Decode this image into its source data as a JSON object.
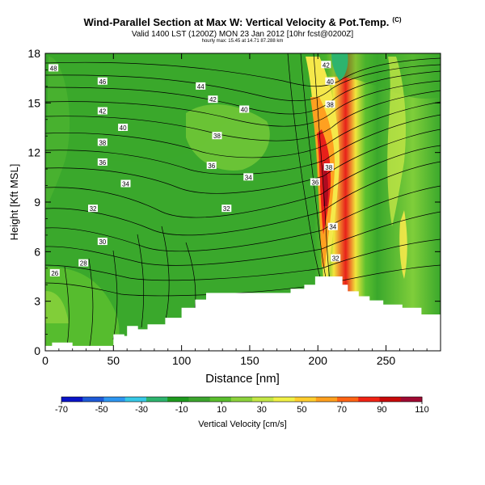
{
  "header": {
    "title": "Wind-Parallel Section at Max W: Vertical Velocity & Pot.Temp.",
    "title_sup": "(C)",
    "subtitle": "Valid 1400 LST (1200Z) MON 23 Jan 2012 [10hr fcst@0200Z]",
    "subtitle2": "hourly max: 15.45 at 14.71 87.288 km"
  },
  "chart_data": {
    "type": "heatmap",
    "xlabel": "Distance [nm]",
    "ylabel": "Height [Kft MSL]",
    "xlim": [
      0,
      290
    ],
    "ylim": [
      0,
      18
    ],
    "x_ticks": [
      "0",
      "50",
      "100",
      "150",
      "200",
      "250"
    ],
    "y_ticks": [
      "0",
      "3",
      "6",
      "9",
      "12",
      "15",
      "18"
    ],
    "colorbar": {
      "label": "Vertical Velocity [cm/s]",
      "tick_labels": [
        "-70",
        "-50",
        "-30",
        "-10",
        "10",
        "30",
        "50",
        "70",
        "90",
        "110"
      ],
      "colors": [
        "#0a14c8",
        "#1e5ad7",
        "#2d96f0",
        "#37c8e6",
        "#2db46e",
        "#1e9b1e",
        "#3ca52d",
        "#5abe2d",
        "#8cd23c",
        "#c3e646",
        "#f0f046",
        "#ffcd2d",
        "#ffa01e",
        "#ff6414",
        "#f02314",
        "#c80a0a",
        "#a00a32"
      ]
    },
    "terrain": [
      [
        0,
        0.3
      ],
      [
        5,
        0.3
      ],
      [
        5,
        0.5
      ],
      [
        20,
        0.5
      ],
      [
        20,
        0.3
      ],
      [
        50,
        0.3
      ],
      [
        50,
        1.0
      ],
      [
        58,
        1.0
      ],
      [
        58,
        0.9
      ],
      [
        60,
        0.9
      ],
      [
        60,
        1.5
      ],
      [
        68,
        1.5
      ],
      [
        68,
        1.3
      ],
      [
        75,
        1.3
      ],
      [
        75,
        1.6
      ],
      [
        88,
        1.6
      ],
      [
        88,
        2.0
      ],
      [
        100,
        2.0
      ],
      [
        100,
        2.6
      ],
      [
        110,
        2.6
      ],
      [
        110,
        3.1
      ],
      [
        118,
        3.1
      ],
      [
        118,
        3.5
      ],
      [
        180,
        3.5
      ],
      [
        180,
        3.75
      ],
      [
        190,
        3.75
      ],
      [
        190,
        4.0
      ],
      [
        198,
        4.0
      ],
      [
        198,
        4.5
      ],
      [
        218,
        4.5
      ],
      [
        218,
        4.0
      ],
      [
        222,
        4.0
      ],
      [
        222,
        3.6
      ],
      [
        230,
        3.6
      ],
      [
        230,
        3.3
      ],
      [
        238,
        3.3
      ],
      [
        238,
        3.05
      ],
      [
        248,
        3.05
      ],
      [
        248,
        2.8
      ],
      [
        262,
        2.8
      ],
      [
        262,
        2.6
      ],
      [
        276,
        2.6
      ],
      [
        276,
        2.2
      ],
      [
        290,
        2.2
      ]
    ],
    "theta_labels": [
      {
        "v": "48",
        "x": 6,
        "y": 17.1
      },
      {
        "v": "46",
        "x": 42,
        "y": 16.3
      },
      {
        "v": "44",
        "x": 114,
        "y": 16.0
      },
      {
        "v": "42",
        "x": 42,
        "y": 14.5
      },
      {
        "v": "42",
        "x": 123,
        "y": 15.2
      },
      {
        "v": "40",
        "x": 57,
        "y": 13.5
      },
      {
        "v": "40",
        "x": 146,
        "y": 14.6
      },
      {
        "v": "38",
        "x": 42,
        "y": 12.6
      },
      {
        "v": "38",
        "x": 126,
        "y": 13.0
      },
      {
        "v": "36",
        "x": 42,
        "y": 11.4
      },
      {
        "v": "36",
        "x": 122,
        "y": 11.2
      },
      {
        "v": "34",
        "x": 59,
        "y": 10.1
      },
      {
        "v": "34",
        "x": 149,
        "y": 10.5
      },
      {
        "v": "32",
        "x": 35,
        "y": 8.6
      },
      {
        "v": "32",
        "x": 133,
        "y": 8.6
      },
      {
        "v": "30",
        "x": 42,
        "y": 6.6
      },
      {
        "v": "28",
        "x": 28,
        "y": 5.3
      },
      {
        "v": "26",
        "x": 7,
        "y": 4.7
      },
      {
        "v": "36",
        "x": 198,
        "y": 10.2
      },
      {
        "v": "38",
        "x": 208,
        "y": 11.1
      },
      {
        "v": "34",
        "x": 211,
        "y": 7.5
      },
      {
        "v": "32",
        "x": 213,
        "y": 5.6
      },
      {
        "v": "38",
        "x": 209,
        "y": 14.9
      },
      {
        "v": "40",
        "x": 209,
        "y": 16.3
      },
      {
        "v": "42",
        "x": 206,
        "y": 17.3
      }
    ]
  }
}
